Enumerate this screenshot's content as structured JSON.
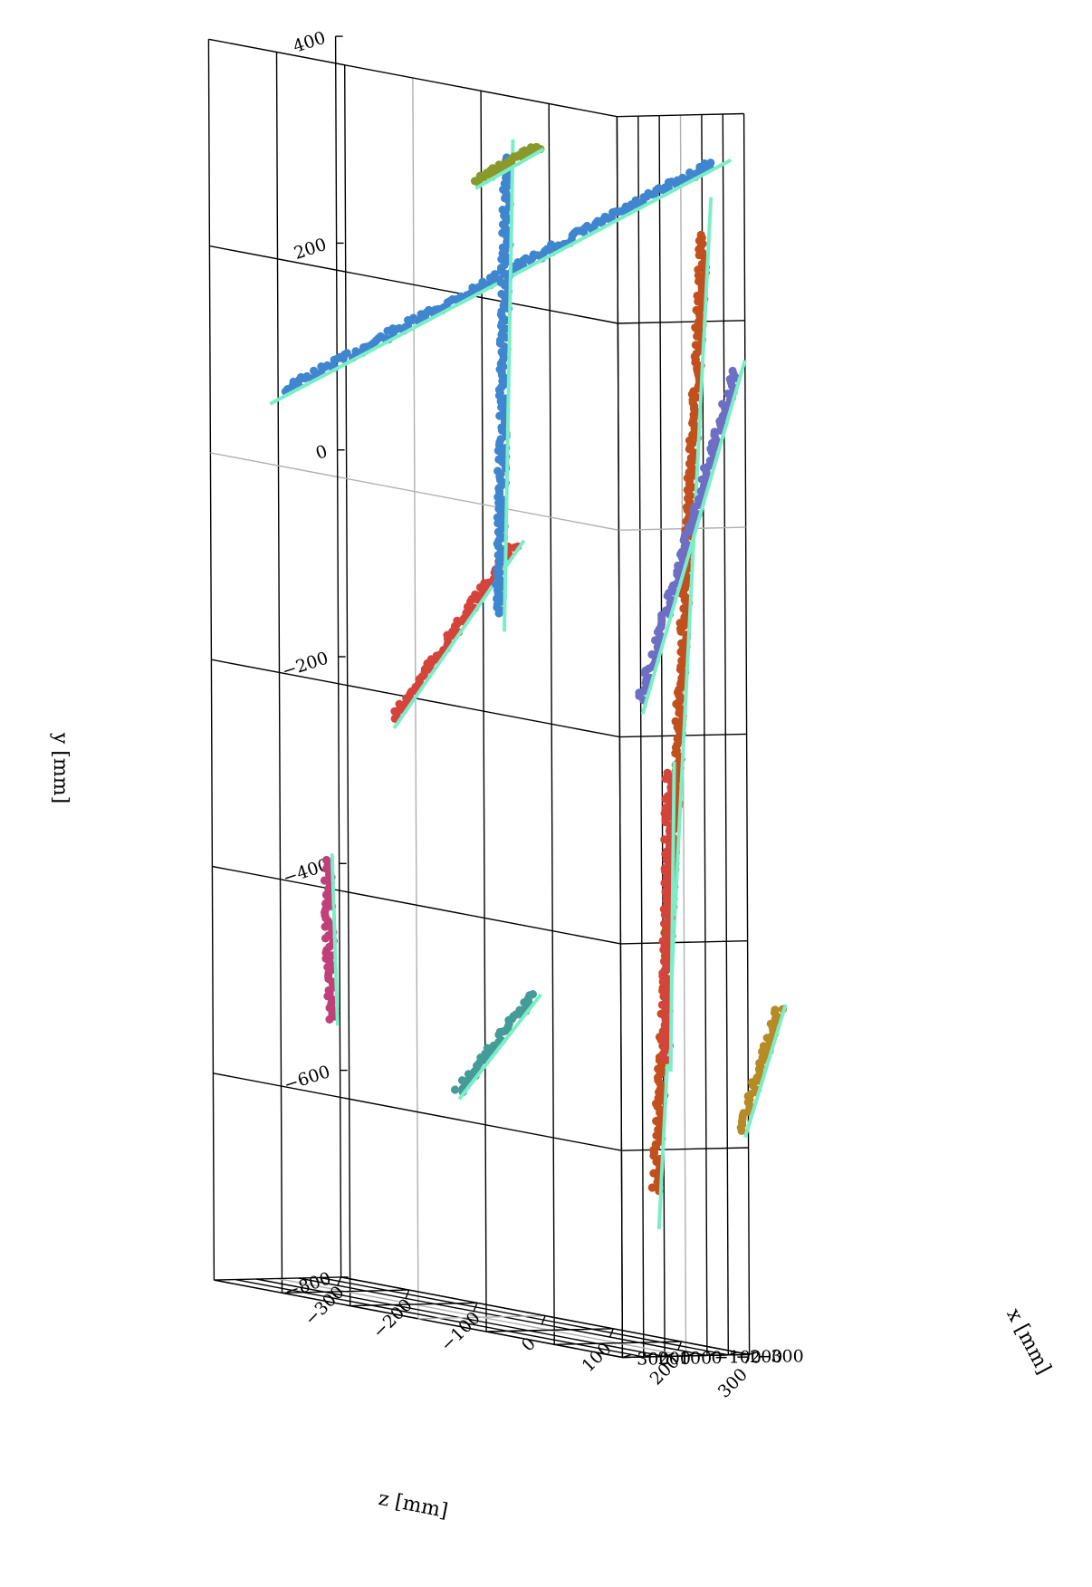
{
  "chart_data": {
    "type": "scatter3d",
    "xlabel": "x [mm]",
    "ylabel": "y [mm]",
    "zlabel": "z [mm]",
    "xlim": [
      -300,
      300
    ],
    "ylim": [
      -800,
      400
    ],
    "zlim": [
      -300,
      300
    ],
    "x_ticks": [
      "300",
      "200",
      "100",
      "0",
      "−100",
      "−200",
      "−300"
    ],
    "y_ticks": [
      "400",
      "200",
      "0",
      "−200",
      "−400",
      "−600",
      "−800"
    ],
    "z_ticks": [
      "−300",
      "−200",
      "−100",
      "0",
      "100",
      "200",
      "300"
    ],
    "grid": true,
    "fit_line_color": "#7aeec6",
    "tracks": [
      {
        "color": "#3f86cf",
        "start": [
          -33,
          60,
          -294
        ],
        "end": [
          -235,
          348,
          272
        ]
      },
      {
        "color": "#d4443a",
        "start": [
          -88,
          -240,
          -152
        ],
        "end": [
          -50,
          -48,
          38
        ]
      },
      {
        "color": "#3f86cf",
        "start": [
          -14,
          -116,
          26
        ],
        "end": [
          -48,
          325,
          30
        ]
      },
      {
        "color": "#8a9a2a",
        "start": [
          -33,
          296,
          -12
        ],
        "end": [
          -100,
          340,
          60
        ]
      },
      {
        "color": "#c0407a",
        "start": [
          -160,
          -546,
          -268
        ],
        "end": [
          -187,
          -394,
          -283
        ]
      },
      {
        "color": "#459b98",
        "start": [
          5,
          -586,
          -32
        ],
        "end": [
          34,
          -477,
          89
        ]
      },
      {
        "color": "#c2501e",
        "start": [
          15,
          -645,
          261
        ],
        "end": [
          -49,
          286,
          318
        ]
      },
      {
        "color": "#6d6fc4",
        "start": [
          18,
          -172,
          244
        ],
        "end": [
          -38,
          160,
          368
        ]
      },
      {
        "color": "#d4443a",
        "start": [
          -60,
          -520,
          253
        ],
        "end": [
          -72,
          -242,
          256
        ]
      },
      {
        "color": "#b68a25",
        "start": [
          -26,
          -573,
          375
        ],
        "end": [
          -42,
          -448,
          426
        ]
      }
    ]
  }
}
